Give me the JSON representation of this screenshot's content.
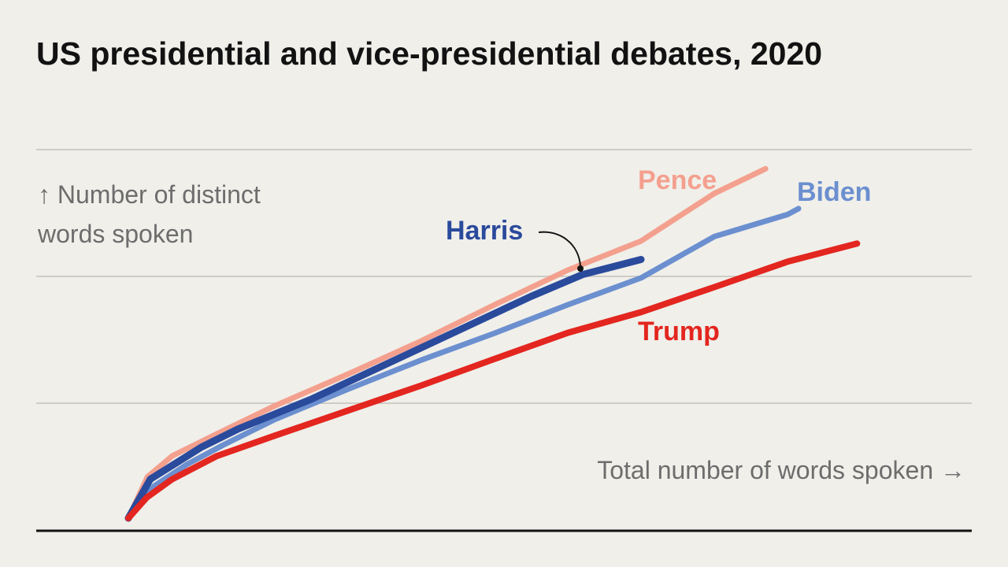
{
  "chart_data": {
    "type": "line",
    "title": "US presidential and vice-presidential debates, 2020",
    "ylabel": [
      "↑ Number of distinct",
      "words spoken"
    ],
    "xlabel": "Total number of words spoken →",
    "xlim": [
      0,
      100
    ],
    "ylim": [
      0,
      100
    ],
    "grid": true,
    "legend": "direct labels on lines",
    "series": [
      {
        "name": "Pence",
        "color": "#f4a08e",
        "points": [
          [
            0,
            0
          ],
          [
            2.6,
            11.2
          ],
          [
            6.0,
            16.9
          ],
          [
            12.0,
            22.8
          ],
          [
            20.0,
            30.5
          ],
          [
            30.0,
            39.1
          ],
          [
            40.0,
            48.1
          ],
          [
            50.0,
            57.9
          ],
          [
            60.0,
            67.3
          ],
          [
            70.0,
            75.2
          ],
          [
            80.0,
            88.1
          ],
          [
            87.0,
            94.8
          ]
        ]
      },
      {
        "name": "Biden",
        "color": "#6b8fcf",
        "points": [
          [
            0,
            0
          ],
          [
            3.5,
            8.7
          ],
          [
            8.0,
            14.6
          ],
          [
            13.0,
            19.9
          ],
          [
            20.0,
            26.8
          ],
          [
            30.0,
            35.0
          ],
          [
            40.0,
            42.9
          ],
          [
            50.0,
            50.2
          ],
          [
            60.0,
            57.9
          ],
          [
            70.0,
            65.2
          ],
          [
            80.0,
            76.4
          ],
          [
            90.0,
            82.4
          ],
          [
            91.5,
            84.0
          ]
        ]
      },
      {
        "name": "Harris",
        "color": "#2a4a9c",
        "points": [
          [
            0,
            0
          ],
          [
            3.0,
            10.6
          ],
          [
            10.0,
            19.3
          ],
          [
            15.0,
            24.2
          ],
          [
            25.0,
            32.3
          ],
          [
            35.0,
            41.6
          ],
          [
            45.0,
            50.9
          ],
          [
            55.0,
            60.2
          ],
          [
            62.0,
            66.1
          ],
          [
            70.0,
            70.2
          ]
        ]
      },
      {
        "name": "Trump",
        "color": "#e3261f",
        "points": [
          [
            0,
            0
          ],
          [
            2.5,
            5.6
          ],
          [
            6.0,
            10.6
          ],
          [
            12.0,
            16.8
          ],
          [
            20.0,
            22.4
          ],
          [
            30.0,
            29.2
          ],
          [
            40.0,
            36.0
          ],
          [
            50.0,
            43.2
          ],
          [
            60.0,
            50.3
          ],
          [
            70.0,
            55.9
          ],
          [
            80.0,
            62.7
          ],
          [
            90.0,
            69.6
          ],
          [
            99.5,
            74.5
          ]
        ]
      }
    ]
  }
}
